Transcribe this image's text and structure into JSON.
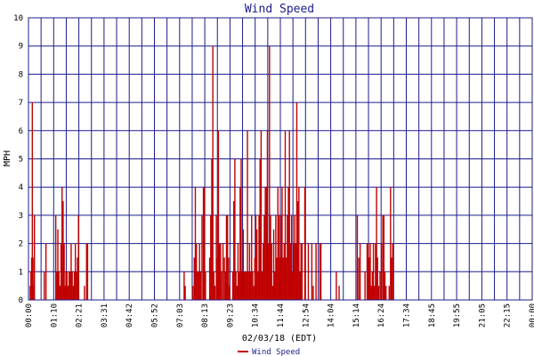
{
  "chart_data": {
    "type": "bar",
    "title": "Wind Speed",
    "xlabel": "02/03/18 (EDT)",
    "ylabel": "MPH",
    "ylim": [
      0,
      10
    ],
    "yticks": [
      "0",
      "1",
      "2",
      "3",
      "4",
      "5",
      "6",
      "7",
      "8",
      "9",
      "10"
    ],
    "xtick_labels": [
      "00:00",
      "01:10",
      "02:21",
      "03:31",
      "04:42",
      "05:52",
      "07:03",
      "08:13",
      "09:23",
      "10:34",
      "11:44",
      "12:54",
      "14:04",
      "15:14",
      "16:24",
      "17:34",
      "18:45",
      "19:55",
      "21:05",
      "22:15",
      "00:00"
    ],
    "xlim_minutes": [
      0,
      1440
    ],
    "grid": true,
    "legend_position": "bottom-center",
    "series": [
      {
        "name": "Wind Speed",
        "color": "#c00000",
        "points": [
          [
            5,
            0.5
          ],
          [
            7,
            1
          ],
          [
            9,
            1.5
          ],
          [
            11,
            7
          ],
          [
            13,
            0.5
          ],
          [
            15,
            1.5
          ],
          [
            17,
            3
          ],
          [
            45,
            1
          ],
          [
            50,
            2
          ],
          [
            78,
            3
          ],
          [
            81,
            1
          ],
          [
            84,
            2.5
          ],
          [
            87,
            1
          ],
          [
            90,
            0.5
          ],
          [
            93,
            2
          ],
          [
            96,
            4
          ],
          [
            99,
            3.5
          ],
          [
            102,
            2
          ],
          [
            104,
            0.5
          ],
          [
            107,
            1
          ],
          [
            110,
            1
          ],
          [
            113,
            0.5
          ],
          [
            116,
            1
          ],
          [
            119,
            1
          ],
          [
            122,
            2
          ],
          [
            125,
            1
          ],
          [
            128,
            0.5
          ],
          [
            131,
            1
          ],
          [
            134,
            2
          ],
          [
            137,
            1
          ],
          [
            140,
            1.5
          ],
          [
            143,
            3
          ],
          [
            160,
            0.5
          ],
          [
            166,
            2
          ],
          [
            169,
            2
          ],
          [
            445,
            1
          ],
          [
            448,
            0.5
          ],
          [
            470,
            0.5
          ],
          [
            474,
            1.5
          ],
          [
            477,
            4
          ],
          [
            480,
            2
          ],
          [
            483,
            1
          ],
          [
            486,
            1
          ],
          [
            489,
            2
          ],
          [
            492,
            1
          ],
          [
            496,
            3
          ],
          [
            500,
            4
          ],
          [
            503,
            4
          ],
          [
            506,
            1
          ],
          [
            518,
            1.5
          ],
          [
            521,
            3
          ],
          [
            524,
            5
          ],
          [
            527,
            9
          ],
          [
            530,
            1
          ],
          [
            533,
            0.5
          ],
          [
            537,
            3
          ],
          [
            540,
            1.5
          ],
          [
            543,
            6
          ],
          [
            546,
            2
          ],
          [
            549,
            2
          ],
          [
            552,
            1
          ],
          [
            556,
            2
          ],
          [
            560,
            1.5
          ],
          [
            563,
            1
          ],
          [
            566,
            3
          ],
          [
            569,
            3
          ],
          [
            572,
            1.5
          ],
          [
            575,
            0.5
          ],
          [
            584,
            1
          ],
          [
            587,
            3.5
          ],
          [
            590,
            5
          ],
          [
            593,
            1
          ],
          [
            596,
            0.5
          ],
          [
            599,
            2
          ],
          [
            602,
            1
          ],
          [
            605,
            4
          ],
          [
            608,
            5
          ],
          [
            611,
            1
          ],
          [
            614,
            2.5
          ],
          [
            617,
            1
          ],
          [
            620,
            1
          ],
          [
            623,
            1
          ],
          [
            626,
            6
          ],
          [
            629,
            1
          ],
          [
            632,
            2
          ],
          [
            635,
            1
          ],
          [
            638,
            3
          ],
          [
            641,
            1
          ],
          [
            644,
            0.5
          ],
          [
            647,
            1.5
          ],
          [
            650,
            3
          ],
          [
            653,
            2.5
          ],
          [
            656,
            1
          ],
          [
            659,
            3
          ],
          [
            662,
            5
          ],
          [
            665,
            6
          ],
          [
            668,
            1
          ],
          [
            671,
            2
          ],
          [
            674,
            3
          ],
          [
            677,
            4
          ],
          [
            680,
            4
          ],
          [
            683,
            6
          ],
          [
            686,
            2
          ],
          [
            689,
            9
          ],
          [
            692,
            3
          ],
          [
            695,
            2
          ],
          [
            698,
            0.5
          ],
          [
            701,
            2.5
          ],
          [
            704,
            1
          ],
          [
            707,
            3
          ],
          [
            710,
            1.5
          ],
          [
            713,
            4
          ],
          [
            716,
            3
          ],
          [
            719,
            1.5
          ],
          [
            722,
            3
          ],
          [
            725,
            4
          ],
          [
            728,
            1.5
          ],
          [
            731,
            2
          ],
          [
            734,
            6
          ],
          [
            737,
            1.5
          ],
          [
            740,
            3
          ],
          [
            743,
            4
          ],
          [
            746,
            6
          ],
          [
            749,
            2
          ],
          [
            752,
            3
          ],
          [
            755,
            1
          ],
          [
            758,
            2
          ],
          [
            761,
            3
          ],
          [
            764,
            2
          ],
          [
            767,
            7
          ],
          [
            770,
            3.5
          ],
          [
            773,
            4
          ],
          [
            776,
            1
          ],
          [
            779,
            2
          ],
          [
            782,
            2
          ],
          [
            790,
            4
          ],
          [
            800,
            2
          ],
          [
            810,
            2
          ],
          [
            814,
            0.5
          ],
          [
            822,
            2
          ],
          [
            833,
            2
          ],
          [
            836,
            2
          ],
          [
            880,
            1
          ],
          [
            888,
            0.5
          ],
          [
            940,
            3
          ],
          [
            944,
            1.5
          ],
          [
            948,
            2
          ],
          [
            962,
            1
          ],
          [
            968,
            2
          ],
          [
            971,
            2
          ],
          [
            974,
            1.5
          ],
          [
            977,
            2
          ],
          [
            980,
            0.5
          ],
          [
            983,
            1
          ],
          [
            986,
            2
          ],
          [
            989,
            0.5
          ],
          [
            992,
            2
          ],
          [
            995,
            4
          ],
          [
            998,
            1.5
          ],
          [
            1001,
            0.5
          ],
          [
            1005,
            1
          ],
          [
            1009,
            2
          ],
          [
            1013,
            3
          ],
          [
            1016,
            3
          ],
          [
            1019,
            1
          ],
          [
            1022,
            0.5
          ],
          [
            1031,
            0.5
          ],
          [
            1035,
            4
          ],
          [
            1038,
            1.5
          ],
          [
            1041,
            2
          ]
        ]
      }
    ]
  }
}
